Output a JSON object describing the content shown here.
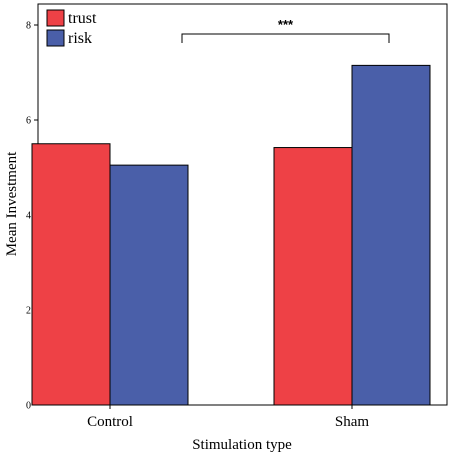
{
  "chart_data": {
    "type": "bar",
    "categories": [
      "Control",
      "Sham"
    ],
    "series": [
      {
        "name": "trust",
        "values": [
          5.5,
          5.42
        ],
        "color": "#ee4146"
      },
      {
        "name": "risk",
        "values": [
          5.05,
          7.15
        ],
        "color": "#4a5fa9"
      }
    ],
    "xlabel": "Stimulation type",
    "ylabel": "Mean Investment",
    "ylim": [
      0,
      8
    ],
    "yticks": [
      "0",
      "2",
      "4",
      "6",
      "8"
    ],
    "grid": false,
    "legend_position": "top-left",
    "annotation": {
      "text": "***",
      "from": "Control",
      "to": "Sham"
    }
  }
}
